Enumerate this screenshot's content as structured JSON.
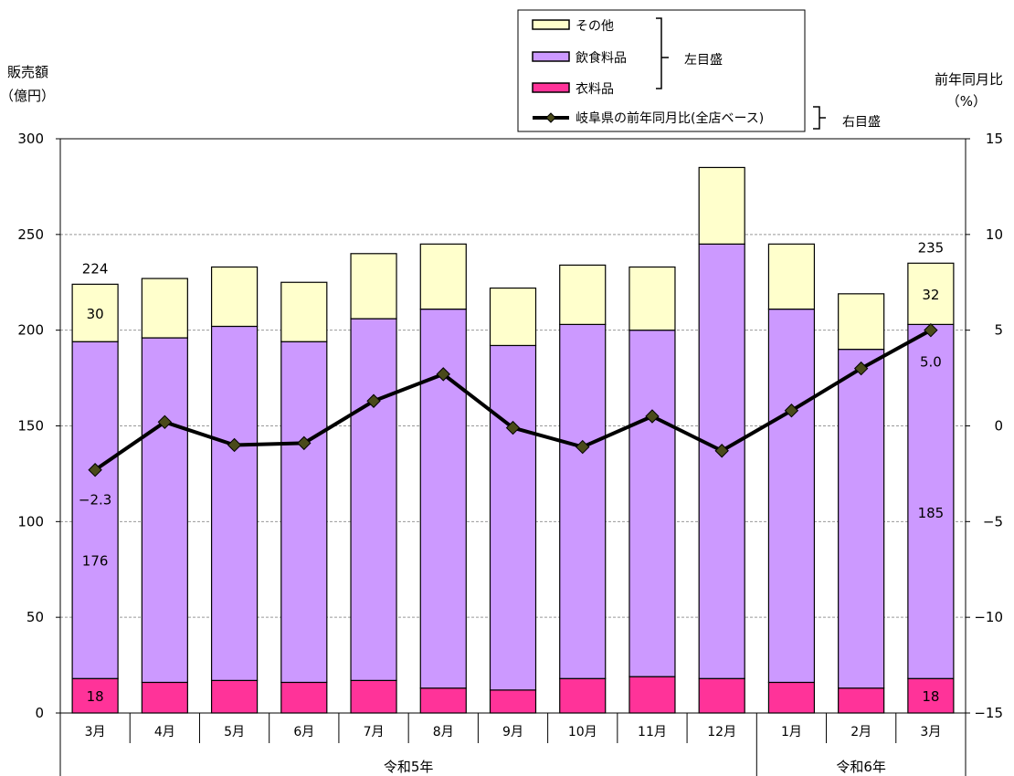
{
  "chart_data": {
    "type": "bar+line",
    "stacked": true,
    "left_axis": {
      "label_line1": "販売額",
      "label_line2": "（億円）",
      "range": [
        0,
        300
      ],
      "ticks": [
        0,
        50,
        100,
        150,
        200,
        250,
        300
      ]
    },
    "right_axis": {
      "label_line1": "前年同月比",
      "label_line2": "（%）",
      "range": [
        -15,
        15
      ],
      "ticks": [
        -15,
        -10,
        -5,
        0,
        5,
        10,
        15
      ]
    },
    "categories": [
      "3月",
      "4月",
      "5月",
      "6月",
      "7月",
      "8月",
      "9月",
      "10月",
      "11月",
      "12月",
      "1月",
      "2月",
      "3月"
    ],
    "year_groups": [
      {
        "label": "令和5年",
        "start": 0,
        "end": 9
      },
      {
        "label": "令和6年",
        "start": 10,
        "end": 12
      }
    ],
    "series": [
      {
        "name": "衣料品",
        "color": "#ff3399",
        "values": [
          18,
          16,
          17,
          16,
          17,
          13,
          12,
          18,
          19,
          18,
          16,
          13,
          18
        ]
      },
      {
        "name": "飲食料品",
        "color": "#cc99ff",
        "values": [
          176,
          180,
          185,
          178,
          189,
          198,
          180,
          185,
          181,
          227,
          195,
          177,
          185
        ]
      },
      {
        "name": "その他",
        "color": "#ffffcc",
        "values": [
          30,
          31,
          31,
          31,
          34,
          34,
          30,
          31,
          33,
          40,
          34,
          29,
          32
        ]
      }
    ],
    "line_series": {
      "name": "岐阜県の前年同月比(全店ベース)",
      "axis": "right",
      "color": "#000000",
      "marker_color": "#4a4a1a",
      "values": [
        -2.3,
        0.2,
        -1.0,
        -0.9,
        1.3,
        2.7,
        -0.1,
        -1.1,
        0.5,
        -1.3,
        0.8,
        3.0,
        5.0
      ]
    },
    "totals": [
      224,
      227,
      233,
      225,
      240,
      245,
      222,
      233,
      233,
      285,
      245,
      219,
      235
    ],
    "data_labels": [
      {
        "index": 0,
        "kind": "total",
        "text": "224"
      },
      {
        "index": 0,
        "kind": "その他",
        "text": "30"
      },
      {
        "index": 0,
        "kind": "飲食料品",
        "text": "176"
      },
      {
        "index": 0,
        "kind": "衣料品",
        "text": "18"
      },
      {
        "index": 0,
        "kind": "line",
        "text": "−2.3"
      },
      {
        "index": 12,
        "kind": "total",
        "text": "235"
      },
      {
        "index": 12,
        "kind": "その他",
        "text": "32"
      },
      {
        "index": 12,
        "kind": "飲食料品",
        "text": "185"
      },
      {
        "index": 12,
        "kind": "衣料品",
        "text": "18"
      },
      {
        "index": 12,
        "kind": "line",
        "text": "5.0"
      }
    ],
    "legend": {
      "items": [
        "その他",
        "飲食料品",
        "衣料品",
        "岐阜県の前年同月比(全店ベース)"
      ],
      "left_scale_label": "左目盛",
      "right_scale_label": "右目盛"
    },
    "grid": true
  }
}
